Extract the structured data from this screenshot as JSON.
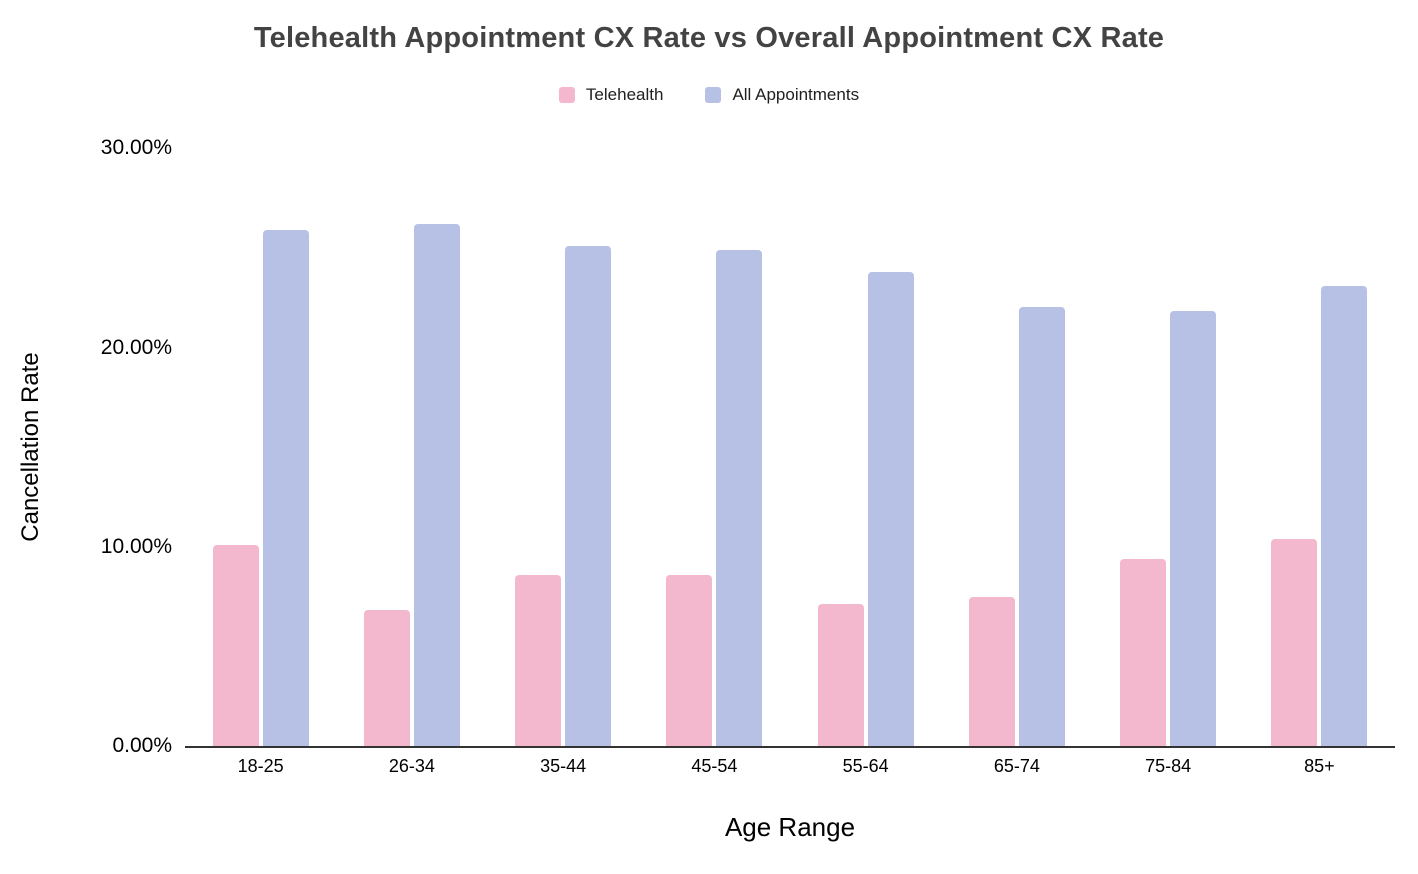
{
  "chart_data": {
    "type": "bar",
    "title": "Telehealth Appointment CX Rate vs Overall Appointment CX Rate",
    "xlabel": "Age Range",
    "ylabel": "Cancellation Rate",
    "categories": [
      "18-25",
      "26-34",
      "35-44",
      "45-54",
      "55-64",
      "65-74",
      "75-84",
      "85+"
    ],
    "series": [
      {
        "name": "Telehealth",
        "color": "#F3B8CD",
        "values": [
          10.1,
          6.8,
          8.6,
          8.6,
          7.1,
          7.5,
          9.4,
          10.4
        ]
      },
      {
        "name": "All Appointments",
        "color": "#B7C0E5",
        "values": [
          25.9,
          26.2,
          25.1,
          24.9,
          23.8,
          22.0,
          21.8,
          23.1
        ]
      }
    ],
    "ylim": [
      0,
      30
    ],
    "yticks": [
      {
        "value": 0,
        "label": "0.00%"
      },
      {
        "value": 10,
        "label": "10.00%"
      },
      {
        "value": 20,
        "label": "20.00%"
      },
      {
        "value": 30,
        "label": "30.00%"
      }
    ],
    "grid": false,
    "legend_position": "top",
    "title_color": "#434343",
    "axis_line_color": "#333333",
    "text_color": "#000000"
  }
}
